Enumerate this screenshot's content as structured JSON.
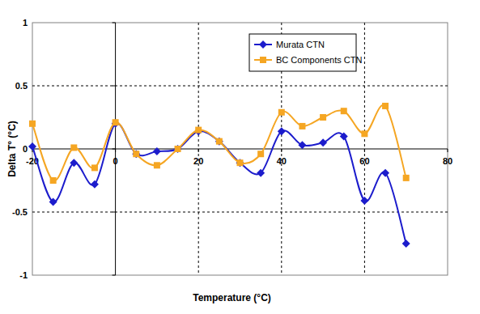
{
  "chart_data": {
    "type": "line",
    "x_label": "Temperature (°C)",
    "y_label": "Delta T° (°C)",
    "x": [
      -20,
      -15,
      -10,
      -5,
      0,
      5,
      10,
      15,
      20,
      25,
      30,
      35,
      40,
      45,
      50,
      55,
      60,
      65,
      70
    ],
    "series": [
      {
        "name": "Murata CTN",
        "color": "#1c1ccc",
        "marker": "diamond",
        "line_style": "smooth",
        "values": [
          0.02,
          -0.42,
          -0.11,
          -0.28,
          0.2,
          -0.04,
          -0.02,
          0.0,
          0.14,
          0.06,
          -0.11,
          -0.19,
          0.14,
          0.03,
          0.05,
          0.1,
          -0.41,
          -0.19,
          -0.75
        ]
      },
      {
        "name": "BC Components CTN",
        "color": "#f5a623",
        "marker": "square",
        "line_style": "smooth",
        "values": [
          0.2,
          -0.25,
          0.01,
          -0.15,
          0.21,
          -0.04,
          -0.13,
          0.0,
          0.15,
          0.06,
          -0.11,
          -0.04,
          0.29,
          0.18,
          0.25,
          0.3,
          0.12,
          0.34,
          -0.23
        ]
      }
    ],
    "xlim": [
      -20,
      80
    ],
    "xticks": [
      -20,
      0,
      20,
      40,
      60,
      80
    ],
    "ylim": [
      -1,
      1
    ],
    "yticks": [
      -1,
      -0.5,
      0,
      0.5,
      1
    ],
    "grid": true,
    "legend": "top-right"
  }
}
